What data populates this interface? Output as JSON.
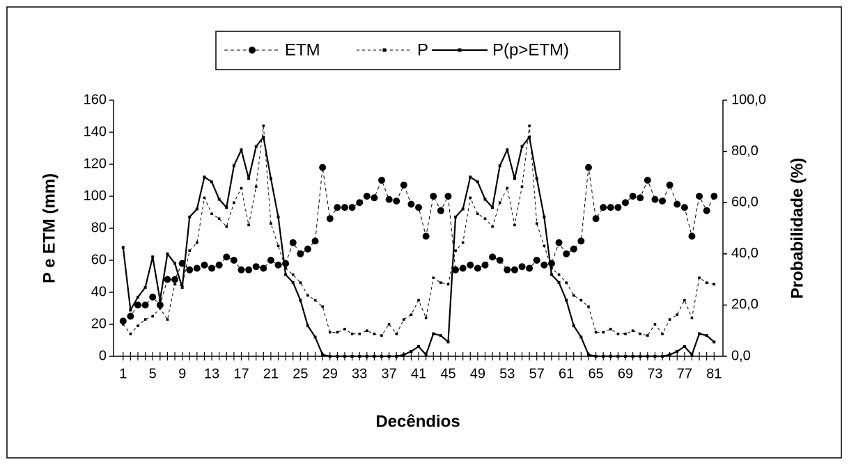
{
  "chart_data": {
    "type": "line",
    "xlabel": "Decêndios",
    "ylabel": "P e ETM (mm)",
    "y2label": "Probabilidade (%)",
    "x": [
      1,
      2,
      3,
      4,
      5,
      6,
      7,
      8,
      9,
      10,
      11,
      12,
      13,
      14,
      15,
      16,
      17,
      18,
      19,
      20,
      21,
      22,
      23,
      24,
      25,
      26,
      27,
      28,
      29,
      30,
      31,
      32,
      33,
      34,
      35,
      36,
      37,
      38,
      39,
      40,
      41,
      42,
      43,
      44,
      45,
      46,
      47,
      48,
      49,
      50,
      51,
      52,
      53,
      54,
      55,
      56,
      57,
      58,
      59,
      60,
      61,
      62,
      63,
      64,
      65,
      66,
      67,
      68,
      69,
      70,
      71,
      72,
      73,
      74,
      75,
      76,
      77,
      78,
      79,
      80,
      81
    ],
    "xlim": [
      -0.3,
      82.2
    ],
    "xticks": [
      1,
      5,
      9,
      13,
      17,
      21,
      25,
      29,
      33,
      37,
      41,
      45,
      49,
      53,
      57,
      61,
      65,
      69,
      73,
      77,
      81
    ],
    "ylim": [
      0,
      160
    ],
    "yticks": [
      0,
      20,
      40,
      60,
      80,
      100,
      120,
      140,
      160
    ],
    "y2lim": [
      0,
      100
    ],
    "y2ticks": [
      {
        "value": 0,
        "label": "0,0"
      },
      {
        "value": 20,
        "label": "20,0"
      },
      {
        "value": 40,
        "label": "40,0"
      },
      {
        "value": 60,
        "label": "60,0"
      },
      {
        "value": 80,
        "label": "80,0"
      },
      {
        "value": 100,
        "label": "100,0"
      }
    ],
    "series": [
      {
        "name": "ETM",
        "color": "#000000",
        "values": [
          22,
          25,
          32,
          32,
          37,
          32,
          48,
          48,
          58,
          54,
          55,
          57,
          55,
          57,
          62,
          60,
          54,
          54,
          56,
          55,
          60,
          57,
          58,
          71,
          64,
          67,
          72,
          118,
          86,
          93,
          93,
          93,
          96,
          100,
          99,
          110,
          98,
          97,
          107,
          95,
          93,
          75,
          100,
          91,
          100,
          54,
          55,
          57,
          55,
          57,
          62,
          60,
          54,
          54,
          56,
          55,
          60,
          57,
          58,
          71,
          64,
          67,
          72,
          118,
          86,
          93,
          93,
          93,
          96,
          100,
          99,
          110,
          98,
          97,
          107,
          95,
          93,
          75,
          100,
          91,
          100
        ]
      },
      {
        "name": "P",
        "color": "#000000",
        "values": [
          20,
          14,
          19,
          23,
          25,
          30,
          23,
          45,
          44,
          66,
          71,
          99,
          89,
          86,
          81,
          96,
          105,
          82,
          106,
          144,
          83,
          69,
          55,
          51,
          46,
          38,
          35,
          31,
          15,
          15,
          17,
          14,
          14,
          16,
          14,
          13,
          20,
          14,
          23,
          26,
          35,
          24,
          49,
          46,
          45,
          66,
          71,
          99,
          89,
          86,
          81,
          96,
          105,
          82,
          106,
          144,
          83,
          69,
          55,
          51,
          46,
          38,
          35,
          31,
          15,
          15,
          17,
          14,
          14,
          16,
          14,
          13,
          20,
          14,
          23,
          26,
          35,
          24,
          49,
          46,
          45
        ]
      },
      {
        "name": "P(p>ETM)",
        "color": "#000000",
        "axis": "y2",
        "values": [
          42.5,
          18.1,
          23.1,
          26.9,
          38.8,
          21.9,
          40,
          36.3,
          26.9,
          54.4,
          57.5,
          70,
          68.1,
          61.3,
          58.1,
          74.4,
          80.6,
          69.4,
          81.9,
          85.6,
          69.4,
          54.4,
          31.9,
          28.8,
          21.9,
          11.9,
          7.5,
          0.6,
          0,
          0,
          0,
          0,
          0,
          0,
          0,
          0,
          0,
          0,
          0.6,
          1.9,
          3.8,
          0.6,
          8.8,
          8.1,
          5.6,
          54.4,
          57.5,
          70,
          68.1,
          61.3,
          58.1,
          74.4,
          80.6,
          69.4,
          81.9,
          85.6,
          69.4,
          54.4,
          31.9,
          28.8,
          21.9,
          11.9,
          7.5,
          0.6,
          0,
          0,
          0,
          0,
          0,
          0,
          0,
          0,
          0,
          0,
          0.6,
          1.9,
          3.8,
          0.6,
          8.8,
          8.1,
          5.6
        ]
      }
    ]
  }
}
